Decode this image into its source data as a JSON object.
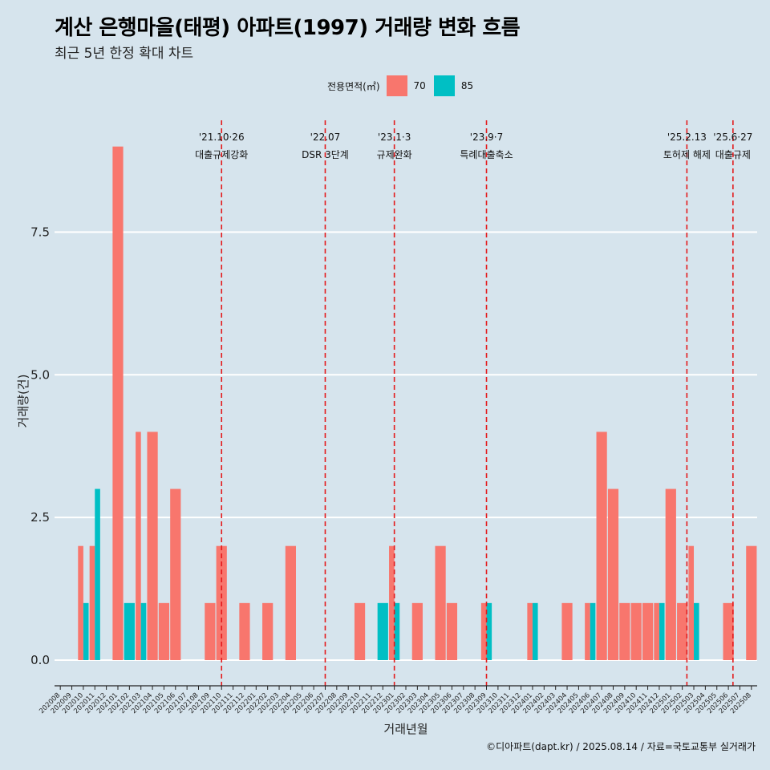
{
  "title": "계산 은행마을(태평) 아파트(1997) 거래량 변화 흐름",
  "subtitle": "최근 5년 한정 확대 차트",
  "caption": "©디아파트(dapt.kr) / 2025.08.14 / 자료=국토교통부 실거래가",
  "legend": {
    "title": "전용면적(㎡)",
    "items": [
      {
        "label": "70",
        "color": "#f8766d"
      },
      {
        "label": "85",
        "color": "#00bfc4"
      }
    ]
  },
  "chart_data": {
    "type": "bar",
    "xlabel": "거래년월",
    "ylabel": "거래량(건)",
    "ylim": [
      -0.45,
      9.6
    ],
    "yticks": [
      0.0,
      2.5,
      5.0,
      7.5
    ],
    "ytick_labels": [
      "0.0",
      "2.5",
      "5.0",
      "7.5"
    ],
    "grid": "horizontal major",
    "legend_position": "top",
    "categories": [
      "202008",
      "202009",
      "202010",
      "202011",
      "202012",
      "202101",
      "202102",
      "202103",
      "202104",
      "202105",
      "202106",
      "202107",
      "202108",
      "202109",
      "202110",
      "202111",
      "202112",
      "202201",
      "202202",
      "202203",
      "202204",
      "202205",
      "202206",
      "202207",
      "202208",
      "202209",
      "202210",
      "202211",
      "202212",
      "202301",
      "202302",
      "202303",
      "202304",
      "202305",
      "202306",
      "202307",
      "202308",
      "202309",
      "202310",
      "202311",
      "202312",
      "202401",
      "202402",
      "202403",
      "202404",
      "202405",
      "202406",
      "202407",
      "202408",
      "202409",
      "202410",
      "202411",
      "202412",
      "202501",
      "202502",
      "202503",
      "202504",
      "202505",
      "202506",
      "202507",
      "202508"
    ],
    "series": [
      {
        "name": "70",
        "color": "#f8766d",
        "values": [
          0,
          0,
          2,
          2,
          0,
          9,
          0,
          4,
          4,
          1,
          3,
          0,
          0,
          1,
          2,
          0,
          1,
          0,
          1,
          0,
          2,
          0,
          0,
          0,
          0,
          0,
          1,
          0,
          0,
          2,
          0,
          1,
          0,
          2,
          1,
          0,
          0,
          1,
          0,
          0,
          0,
          1,
          0,
          0,
          1,
          0,
          1,
          4,
          3,
          1,
          1,
          1,
          1,
          3,
          1,
          2,
          0,
          0,
          1,
          0,
          2
        ]
      },
      {
        "name": "85",
        "color": "#00bfc4",
        "values": [
          0,
          0,
          1,
          3,
          0,
          0,
          1,
          1,
          0,
          0,
          0,
          0,
          0,
          0,
          0,
          0,
          0,
          0,
          0,
          0,
          0,
          0,
          0,
          0,
          0,
          0,
          0,
          0,
          1,
          1,
          0,
          0,
          0,
          0,
          0,
          0,
          0,
          1,
          0,
          0,
          0,
          1,
          0,
          0,
          0,
          0,
          1,
          0,
          0,
          0,
          0,
          0,
          1,
          0,
          0,
          1,
          0,
          0,
          0,
          0,
          0
        ]
      }
    ],
    "events": [
      {
        "x": 14.0,
        "date": "'21.10·26",
        "label": "대출규제강화"
      },
      {
        "x": 23.0,
        "date": "'22.07",
        "label": "DSR 3단계"
      },
      {
        "x": 29.0,
        "date": "'23.1·3",
        "label": "규제완화"
      },
      {
        "x": 37.0,
        "date": "'23.9·7",
        "label": "특례대출축소"
      },
      {
        "x": 54.4,
        "date": "'25.2.13",
        "label": "토허제 해제"
      },
      {
        "x": 58.4,
        "date": "'25.6·27",
        "label": "대출규제"
      }
    ],
    "event_line_color": "#e41a1c"
  }
}
